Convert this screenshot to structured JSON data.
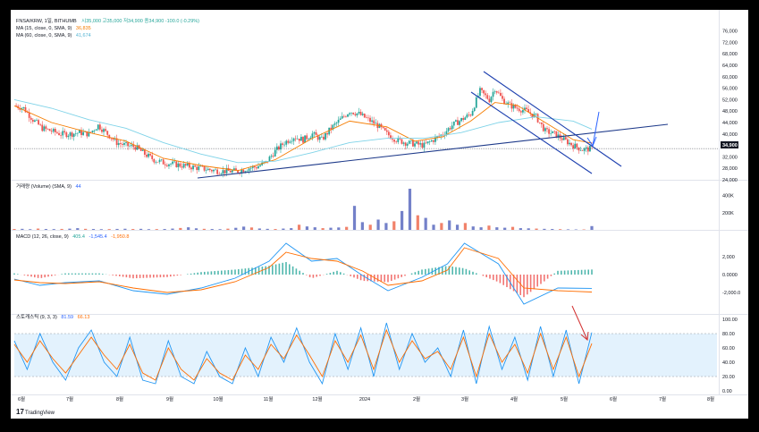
{
  "header": {
    "symbol": "FNSA/KRW, 1일, BITHUMB",
    "ohlc": "시35,000  고35,000  저34,900  종34,900  -100.0 (-0.29%)",
    "ma15_label": "MA (15, close, 0, SMA, 9)",
    "ma15_value": "36,835",
    "ma60_label": "MA (60, close, 0, SMA, 9)",
    "ma60_value": "41,674",
    "last_price": "34,900"
  },
  "volume_panel": {
    "label": "거래량 (Volume) (SMA, 9)",
    "value": "44"
  },
  "macd_panel": {
    "label": "MACD (12, 26, close, 9)",
    "v1": "405.4",
    "v2": "-1,545.4",
    "v3": "-1,950.8"
  },
  "stoch_panel": {
    "label": "스토캐스틱 (9, 3, 3)",
    "k": "81.59",
    "d": "66.13"
  },
  "branding": {
    "logo_text": "TradingView"
  },
  "colors": {
    "up": "#26a69a",
    "down": "#ef5350",
    "ma15": "#f57c00",
    "ma60": "#7fd3e8",
    "trendline": "#1e3a8a",
    "channel": "#1e40af",
    "arrow_blue": "#2962ff",
    "arrow_red": "#d32f2f",
    "vol_up": "#5c6bc0",
    "vol_down": "#ef6c50",
    "macd_line": "#2196f3",
    "signal_line": "#ff6d00",
    "stoch_k": "#2196f3",
    "stoch_d": "#ff6d00",
    "stoch_band": "#e3f2fd"
  },
  "chart_data": [
    {
      "type": "candlestick",
      "title": "FNSA/KRW, 1일, BITHUMB",
      "x_ticks": [
        "6월",
        "7월",
        "8월",
        "9월",
        "10월",
        "11월",
        "12월",
        "2024",
        "2월",
        "3월",
        "4월",
        "5월",
        "6월",
        "7월",
        "8월"
      ],
      "y_ticks": [
        24000,
        28000,
        32000,
        36000,
        40000,
        44000,
        48000,
        52000,
        56000,
        60000,
        64000,
        68000,
        72000,
        76000
      ],
      "y_tick_labels": [
        "24,000",
        "28,000",
        "32,000",
        "36,000",
        "40,000",
        "44,000",
        "48,000",
        "52,000",
        "56,000",
        "60,000",
        "64,000",
        "68,000",
        "72,000",
        "76,000"
      ],
      "ylim": [
        24000,
        79000
      ],
      "close_path": [
        [
          0,
          50000
        ],
        [
          5,
          49000
        ],
        [
          10,
          45000
        ],
        [
          15,
          42000
        ],
        [
          20,
          41000
        ],
        [
          25,
          40000
        ],
        [
          30,
          40000
        ],
        [
          35,
          40500
        ],
        [
          40,
          40000
        ],
        [
          45,
          43000
        ],
        [
          50,
          40000
        ],
        [
          55,
          37000
        ],
        [
          60,
          36000
        ],
        [
          65,
          35500
        ],
        [
          70,
          33000
        ],
        [
          75,
          31000
        ],
        [
          80,
          30000
        ],
        [
          85,
          29500
        ],
        [
          90,
          29000
        ],
        [
          95,
          28500
        ],
        [
          100,
          28000
        ],
        [
          105,
          27500
        ],
        [
          110,
          27000
        ],
        [
          115,
          27000
        ],
        [
          120,
          27000
        ],
        [
          125,
          28000
        ],
        [
          130,
          28500
        ],
        [
          135,
          30000
        ],
        [
          140,
          34000
        ],
        [
          145,
          37000
        ],
        [
          150,
          39000
        ],
        [
          155,
          38000
        ],
        [
          160,
          40000
        ],
        [
          165,
          38000
        ],
        [
          170,
          42000
        ],
        [
          175,
          45000
        ],
        [
          180,
          48000
        ],
        [
          185,
          47000
        ],
        [
          190,
          45000
        ],
        [
          195,
          43000
        ],
        [
          200,
          40000
        ],
        [
          205,
          38000
        ],
        [
          210,
          37000
        ],
        [
          215,
          36500
        ],
        [
          220,
          36000
        ],
        [
          225,
          38000
        ],
        [
          230,
          40000
        ],
        [
          235,
          43000
        ],
        [
          240,
          45000
        ],
        [
          245,
          47000
        ],
        [
          250,
          55000
        ],
        [
          255,
          52000
        ],
        [
          258,
          56000
        ],
        [
          262,
          52000
        ],
        [
          266,
          50000
        ],
        [
          270,
          49000
        ],
        [
          275,
          48000
        ],
        [
          280,
          46000
        ],
        [
          285,
          41000
        ],
        [
          290,
          40000
        ],
        [
          295,
          38000
        ],
        [
          300,
          36000
        ],
        [
          305,
          34500
        ],
        [
          310,
          34900
        ]
      ],
      "series": [
        {
          "name": "MA (15, close, 0, SMA, 9)",
          "last": 36835,
          "values": [
            [
              0,
              49800
            ],
            [
              20,
              44000
            ],
            [
              40,
              40500
            ],
            [
              60,
              37500
            ],
            [
              80,
              31500
            ],
            [
              100,
              29000
            ],
            [
              120,
              27200
            ],
            [
              140,
              31000
            ],
            [
              160,
              38500
            ],
            [
              180,
              44500
            ],
            [
              200,
              42500
            ],
            [
              215,
              37500
            ],
            [
              230,
              39000
            ],
            [
              245,
              44500
            ],
            [
              258,
              51000
            ],
            [
              270,
              50000
            ],
            [
              285,
              44000
            ],
            [
              300,
              38000
            ],
            [
              310,
              36835
            ]
          ]
        },
        {
          "name": "MA (60, close, 0, SMA, 9)",
          "last": 41674,
          "values": [
            [
              0,
              52000
            ],
            [
              20,
              49000
            ],
            [
              40,
              45000
            ],
            [
              60,
              42000
            ],
            [
              80,
              37000
            ],
            [
              100,
              33000
            ],
            [
              120,
              30000
            ],
            [
              140,
              30500
            ],
            [
              160,
              33500
            ],
            [
              180,
              37000
            ],
            [
              200,
              38500
            ],
            [
              220,
              38500
            ],
            [
              240,
              40500
            ],
            [
              260,
              44000
            ],
            [
              280,
              46000
            ],
            [
              300,
              44500
            ],
            [
              310,
              41674
            ]
          ]
        }
      ],
      "last_price": 34900
    },
    {
      "type": "bar",
      "title": "거래량 (Volume) (SMA, 9)",
      "y_tick_labels": [
        "200K",
        "400K"
      ],
      "ylim": [
        0,
        480
      ],
      "values_k": [
        10,
        12,
        8,
        15,
        10,
        9,
        11,
        14,
        20,
        12,
        10,
        8,
        9,
        11,
        13,
        10,
        12,
        8,
        9,
        10,
        15,
        22,
        30,
        18,
        12,
        10,
        8,
        14,
        24,
        38,
        28,
        16,
        12,
        10,
        15,
        20,
        60,
        40,
        30,
        20,
        25,
        28,
        35,
        280,
        90,
        60,
        120,
        80,
        100,
        220,
        480,
        170,
        140,
        60,
        80,
        110,
        60,
        80,
        40,
        30,
        50,
        30,
        25,
        35,
        20,
        18,
        15,
        12,
        10,
        8,
        6,
        5,
        5,
        44
      ]
    },
    {
      "type": "line",
      "title": "MACD (12, 26, close, 9)",
      "y_tick_labels": [
        "2,000",
        "0.0000",
        "-2,000.0"
      ],
      "ylim": [
        -4000,
        4000
      ],
      "series": [
        {
          "name": "MACD",
          "values": [
            [
              0,
              -500
            ],
            [
              15,
              -1200
            ],
            [
              30,
              -900
            ],
            [
              50,
              -700
            ],
            [
              70,
              -1800
            ],
            [
              90,
              -2200
            ],
            [
              110,
              -1500
            ],
            [
              130,
              -400
            ],
            [
              150,
              1500
            ],
            [
              160,
              3500
            ],
            [
              175,
              1500
            ],
            [
              190,
              1800
            ],
            [
              205,
              -100
            ],
            [
              220,
              -1800
            ],
            [
              240,
              -300
            ],
            [
              255,
              1200
            ],
            [
              265,
              3500
            ],
            [
              285,
              1200
            ],
            [
              300,
              -3300
            ],
            [
              320,
              -1500
            ],
            [
              340,
              -1545
            ]
          ]
        },
        {
          "name": "Signal",
          "values": [
            [
              0,
              -600
            ],
            [
              15,
              -900
            ],
            [
              30,
              -1000
            ],
            [
              50,
              -800
            ],
            [
              70,
              -1500
            ],
            [
              90,
              -2000
            ],
            [
              110,
              -1700
            ],
            [
              130,
              -800
            ],
            [
              150,
              800
            ],
            [
              160,
              2500
            ],
            [
              175,
              1800
            ],
            [
              190,
              1500
            ],
            [
              205,
              400
            ],
            [
              220,
              -1200
            ],
            [
              240,
              -700
            ],
            [
              255,
              500
            ],
            [
              265,
              3000
            ],
            [
              285,
              1800
            ],
            [
              300,
              -1500
            ],
            [
              320,
              -1800
            ],
            [
              340,
              -1950
            ]
          ]
        }
      ]
    },
    {
      "type": "line",
      "title": "스토캐스틱 (9, 3, 3)",
      "y_tick_labels": [
        "100.00",
        "80.00",
        "60.00",
        "40.00",
        "20.00",
        "0.00"
      ],
      "ylim": [
        0,
        100
      ],
      "band": [
        20,
        80
      ],
      "series": [
        {
          "name": "%K",
          "last": 81.59,
          "values": [
            [
              0,
              70
            ],
            [
              5,
              30
            ],
            [
              10,
              80
            ],
            [
              15,
              40
            ],
            [
              20,
              15
            ],
            [
              25,
              60
            ],
            [
              30,
              85
            ],
            [
              35,
              40
            ],
            [
              40,
              20
            ],
            [
              45,
              75
            ],
            [
              50,
              15
            ],
            [
              55,
              10
            ],
            [
              60,
              70
            ],
            [
              65,
              20
            ],
            [
              70,
              10
            ],
            [
              75,
              55
            ],
            [
              80,
              20
            ],
            [
              85,
              10
            ],
            [
              90,
              60
            ],
            [
              95,
              20
            ],
            [
              100,
              75
            ],
            [
              105,
              40
            ],
            [
              110,
              88
            ],
            [
              115,
              40
            ],
            [
              120,
              10
            ],
            [
              125,
              80
            ],
            [
              130,
              30
            ],
            [
              135,
              88
            ],
            [
              140,
              20
            ],
            [
              145,
              95
            ],
            [
              150,
              30
            ],
            [
              155,
              80
            ],
            [
              160,
              40
            ],
            [
              165,
              60
            ],
            [
              170,
              20
            ],
            [
              175,
              85
            ],
            [
              180,
              10
            ],
            [
              185,
              90
            ],
            [
              190,
              30
            ],
            [
              195,
              75
            ],
            [
              200,
              15
            ],
            [
              205,
              90
            ],
            [
              210,
              20
            ],
            [
              215,
              85
            ],
            [
              220,
              10
            ],
            [
              225,
              81.59
            ]
          ]
        },
        {
          "name": "%D",
          "last": 66.13,
          "values": [
            [
              0,
              65
            ],
            [
              5,
              40
            ],
            [
              10,
              70
            ],
            [
              15,
              45
            ],
            [
              20,
              25
            ],
            [
              25,
              50
            ],
            [
              30,
              75
            ],
            [
              35,
              50
            ],
            [
              40,
              30
            ],
            [
              45,
              65
            ],
            [
              50,
              25
            ],
            [
              55,
              15
            ],
            [
              60,
              60
            ],
            [
              65,
              30
            ],
            [
              70,
              15
            ],
            [
              75,
              45
            ],
            [
              80,
              25
            ],
            [
              85,
              15
            ],
            [
              90,
              50
            ],
            [
              95,
              30
            ],
            [
              100,
              65
            ],
            [
              105,
              45
            ],
            [
              110,
              78
            ],
            [
              115,
              50
            ],
            [
              120,
              20
            ],
            [
              125,
              70
            ],
            [
              130,
              40
            ],
            [
              135,
              78
            ],
            [
              140,
              30
            ],
            [
              145,
              85
            ],
            [
              150,
              40
            ],
            [
              155,
              70
            ],
            [
              160,
              45
            ],
            [
              165,
              55
            ],
            [
              170,
              30
            ],
            [
              175,
              75
            ],
            [
              180,
              20
            ],
            [
              185,
              80
            ],
            [
              190,
              40
            ],
            [
              195,
              65
            ],
            [
              200,
              25
            ],
            [
              205,
              80
            ],
            [
              210,
              30
            ],
            [
              215,
              75
            ],
            [
              220,
              20
            ],
            [
              225,
              66.13
            ]
          ]
        }
      ]
    }
  ]
}
